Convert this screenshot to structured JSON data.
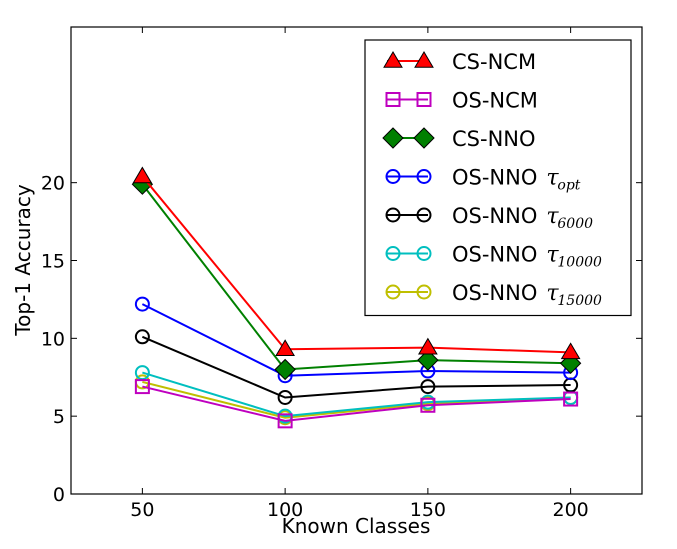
{
  "chart_data": {
    "type": "line",
    "xlabel": "Known Classes",
    "ylabel": "Top-1 Accuracy",
    "x": [
      50,
      100,
      150,
      200
    ],
    "x_ticks": [
      "50",
      "100",
      "150",
      "200"
    ],
    "y_ticks": [
      "0",
      "5",
      "10",
      "15",
      "20"
    ],
    "xlim": [
      25,
      225
    ],
    "ylim": [
      0,
      30
    ],
    "grid": false,
    "legend_position": "top-right",
    "series": [
      {
        "name": "CS-NCM",
        "symbol": "",
        "subscript": "",
        "color": "#ff0000",
        "marker": "triangle-up",
        "marker_fill": "#ff0000",
        "values": [
          20.4,
          9.3,
          9.4,
          9.1
        ]
      },
      {
        "name": "OS-NCM",
        "symbol": "",
        "subscript": "",
        "color": "#bf00bf",
        "marker": "square",
        "marker_fill": "none",
        "values": [
          6.9,
          4.7,
          5.7,
          6.1
        ]
      },
      {
        "name": "CS-NNO",
        "symbol": "",
        "subscript": "",
        "color": "#008000",
        "marker": "diamond",
        "marker_fill": "#008000",
        "values": [
          19.9,
          8.0,
          8.6,
          8.4
        ]
      },
      {
        "name": "OS-NNO",
        "symbol": "τ",
        "subscript": "opt",
        "color": "#0000ff",
        "marker": "circle",
        "marker_fill": "none",
        "values": [
          12.2,
          7.6,
          7.9,
          7.8
        ]
      },
      {
        "name": "OS-NNO",
        "symbol": "τ",
        "subscript": "6000",
        "color": "#000000",
        "marker": "circle",
        "marker_fill": "none",
        "values": [
          10.1,
          6.2,
          6.9,
          7.0
        ]
      },
      {
        "name": "OS-NNO",
        "symbol": "τ",
        "subscript": "10000",
        "color": "#00bfbf",
        "marker": "circle",
        "marker_fill": "none",
        "values": [
          7.8,
          5.0,
          5.9,
          6.2
        ]
      },
      {
        "name": "OS-NNO",
        "symbol": "τ",
        "subscript": "15000",
        "color": "#bfbf00",
        "marker": "circle",
        "marker_fill": "none",
        "values": [
          7.2,
          4.9,
          5.8,
          6.2
        ]
      }
    ]
  }
}
